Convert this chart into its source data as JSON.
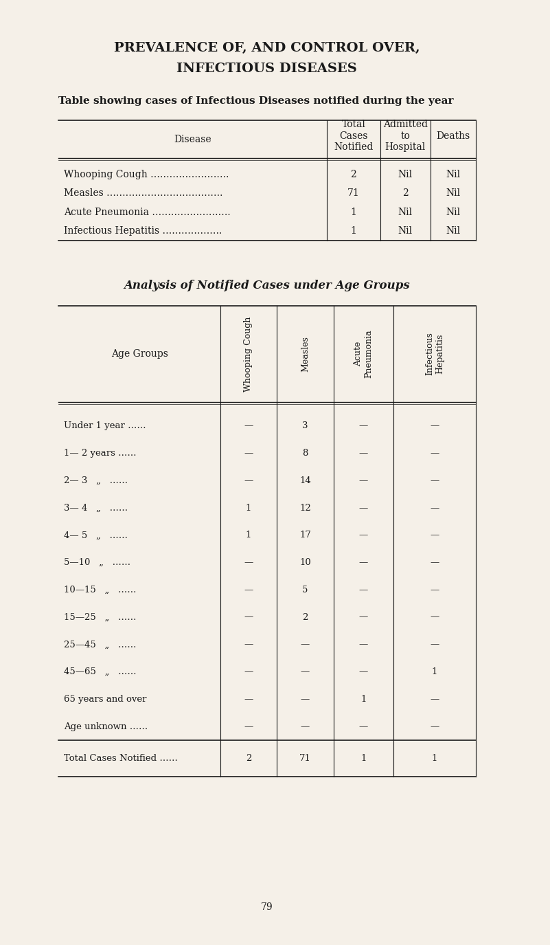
{
  "bg_color": "#f5f0e8",
  "title1": "PREVALENCE OF, AND CONTROL OVER,",
  "title2": "INFECTIOUS DISEASES",
  "subtitle": "Table showing cases of Infectious Diseases notified during the year",
  "table1_headers": [
    "Disease",
    "Total\nCases\nNotified",
    "Admitted\nto\nHospital",
    "Deaths"
  ],
  "table1_rows": [
    [
      "Whooping Cough …………………….",
      "2",
      "Nil",
      "Nil"
    ],
    [
      "Measles ……………………………….",
      "71",
      "2",
      "Nil"
    ],
    [
      "Acute Pneumonia …………………….",
      "1",
      "Nil",
      "Nil"
    ],
    [
      "Infectious Hepatitis ……………….",
      "1",
      "Nil",
      "Nil"
    ]
  ],
  "analysis_title": "Analysis of Notified Cases under Age Groups",
  "table2_col_headers": [
    "Age Groups",
    "Whooping Cough",
    "Measles",
    "Acute\nPneumonia",
    "Infectious\nHepatitis"
  ],
  "table2_rows": [
    [
      "Under 1 year ……",
      "—",
      "3",
      "—",
      "—"
    ],
    [
      "1— 2 years ……",
      "—",
      "8",
      "—",
      "—"
    ],
    [
      "2— 3   „   ……",
      "—",
      "14",
      "—",
      "—"
    ],
    [
      "3— 4   „   ……",
      "1",
      "12",
      "—",
      "—"
    ],
    [
      "4— 5   „   ……",
      "1",
      "17",
      "—",
      "—"
    ],
    [
      "5—10   „   ……",
      "—",
      "10",
      "—",
      "—"
    ],
    [
      "10—15   „   ……",
      "—",
      "5",
      "—",
      "—"
    ],
    [
      "15—25   „   ……",
      "—",
      "2",
      "—",
      "—"
    ],
    [
      "25—45   „   ……",
      "—",
      "—",
      "—",
      "—"
    ],
    [
      "45—65   „   ……",
      "—",
      "—",
      "—",
      "1"
    ],
    [
      "65 years and over",
      "—",
      "—",
      "1",
      "—"
    ],
    [
      "Age unknown ……",
      "—",
      "—",
      "—",
      "—"
    ]
  ],
  "table2_totals": [
    "Total Cases Notified ……",
    "2",
    "71",
    "1",
    "1"
  ],
  "page_number": "79",
  "text_color": "#1a1a1a"
}
